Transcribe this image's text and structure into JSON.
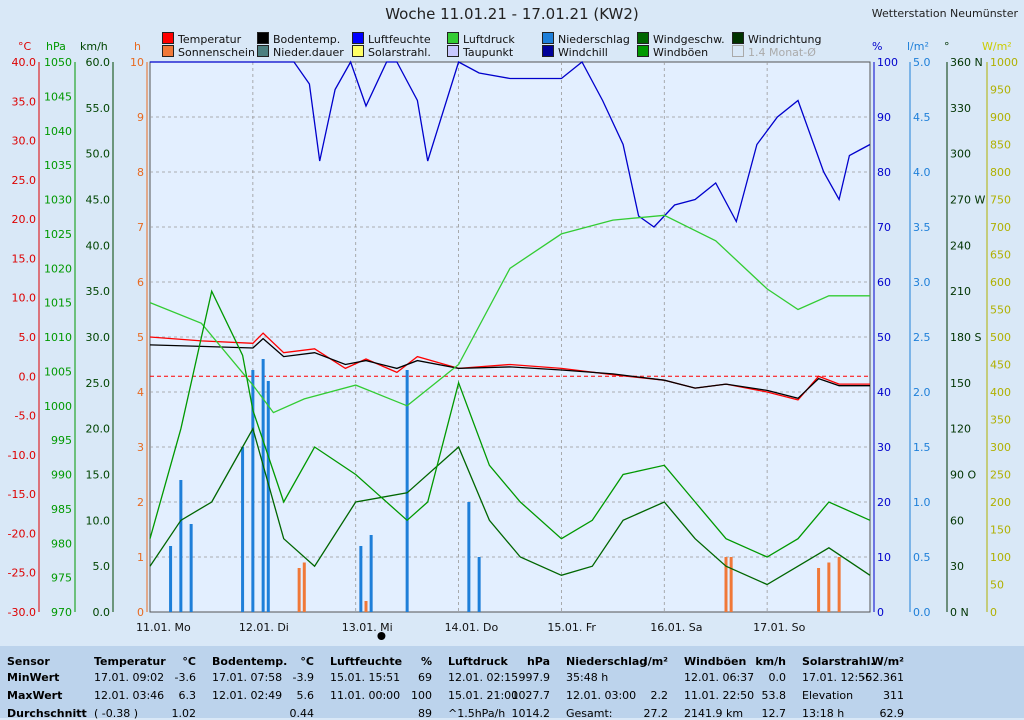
{
  "title": "Woche 11.01.21 - 17.01.21 (KW2)",
  "station": "Wetterstation Neumünster",
  "legend": [
    {
      "label": "Temperatur",
      "color": "#ff0000"
    },
    {
      "label": "Bodentemp.",
      "color": "#000000"
    },
    {
      "label": "Luftfeuchte",
      "color": "#0000ff"
    },
    {
      "label": "Luftdruck",
      "color": "#33cc33"
    },
    {
      "label": "Niederschlag",
      "color": "#1e7fd9"
    },
    {
      "label": "Windgeschw.",
      "color": "#006600"
    },
    {
      "label": "Windrichtung",
      "color": "#003300"
    },
    {
      "label": "Sonnenschein",
      "color": "#f07838"
    },
    {
      "label": "Nieder.dauer",
      "color": "#4d8080"
    },
    {
      "label": "Solarstrahl.",
      "color": "#ffff66"
    },
    {
      "label": "Taupunkt",
      "color": "#c8c8ff"
    },
    {
      "label": "Windchill",
      "color": "#000099"
    },
    {
      "label": "Windböen",
      "color": "#009900"
    },
    {
      "label": "1.4 Monat-Ø",
      "color": "#d9e8f7"
    }
  ],
  "axes": {
    "temp": {
      "unit": "°C",
      "ticks": [
        "40.0",
        "35.0",
        "30.0",
        "25.0",
        "20.0",
        "15.0",
        "10.0",
        "5.0",
        "0.0",
        "-5.0",
        "-10.0",
        "-15.0",
        "-20.0",
        "-25.0",
        "-30.0"
      ],
      "color": "#dd0000"
    },
    "press": {
      "unit": "hPa",
      "ticks": [
        "1050",
        "1045",
        "1040",
        "1035",
        "1030",
        "1025",
        "1020",
        "1015",
        "1010",
        "1005",
        "1000",
        "995",
        "990",
        "985",
        "980",
        "975",
        "970"
      ],
      "color": "#009900"
    },
    "wind": {
      "unit": "km/h",
      "ticks": [
        "60.0",
        "55.0",
        "50.0",
        "45.0",
        "40.0",
        "35.0",
        "30.0",
        "25.0",
        "20.0",
        "15.0",
        "10.0",
        "5.0",
        "0.0"
      ],
      "color": "#004400"
    },
    "sun": {
      "unit": "h",
      "ticks": [
        "10",
        "9",
        "8",
        "7",
        "6",
        "5",
        "4",
        "3",
        "2",
        "1",
        "0"
      ],
      "color": "#e86a20"
    },
    "hum": {
      "unit": "%",
      "ticks": [
        "100",
        "90",
        "80",
        "70",
        "60",
        "50",
        "40",
        "30",
        "20",
        "10",
        "0"
      ],
      "color": "#0000cc"
    },
    "rain": {
      "unit": "l/m²",
      "ticks": [
        "5.0",
        "4.5",
        "4.0",
        "3.5",
        "3.0",
        "2.5",
        "2.0",
        "1.5",
        "1.0",
        "0.5",
        "0.0"
      ],
      "color": "#1e7fd9"
    },
    "dir": {
      "unit": "°",
      "ticks": [
        "360 N",
        "330",
        "300",
        "270 W",
        "240",
        "210",
        "180 S",
        "150",
        "120",
        "90 O",
        "60",
        "30",
        "0 N"
      ],
      "color": "#003300"
    },
    "solar": {
      "unit": "W/m²",
      "ticks": [
        "1000",
        "950",
        "900",
        "850",
        "800",
        "750",
        "700",
        "650",
        "600",
        "550",
        "500",
        "450",
        "400",
        "350",
        "300",
        "250",
        "200",
        "150",
        "100",
        "50",
        "0"
      ],
      "color": "#cccc00"
    }
  },
  "days": [
    "11.01. Mo",
    "12.01. Di",
    "13.01. Mi",
    "14.01. Do",
    "15.01. Fr",
    "16.01. Sa",
    "17.01. So"
  ],
  "chart_data": {
    "type": "line",
    "x_days": [
      "11.01. Mo",
      "12.01. Di",
      "13.01. Mi",
      "14.01. Do",
      "15.01. Fr",
      "16.01. Sa",
      "17.01. So"
    ],
    "series": [
      {
        "name": "Temperatur",
        "unit": "°C",
        "color": "#ff0000",
        "x": [
          0,
          0.5,
          1,
          1.1,
          1.3,
          1.6,
          1.9,
          2.1,
          2.4,
          2.6,
          3,
          3.5,
          4,
          4.5,
          5,
          5.3,
          5.6,
          6,
          6.3,
          6.5,
          6.7,
          7
        ],
        "values": [
          5,
          4.5,
          4.2,
          5.5,
          3,
          3.5,
          1,
          2.2,
          0.5,
          2.5,
          1,
          1.5,
          1,
          0.2,
          -0.5,
          -1.5,
          -1,
          -2,
          -3,
          0,
          -1,
          -1
        ]
      },
      {
        "name": "Bodentemp.",
        "unit": "°C",
        "color": "#000000",
        "x": [
          0,
          0.5,
          1,
          1.1,
          1.3,
          1.6,
          1.9,
          2.1,
          2.4,
          2.6,
          3,
          3.5,
          4,
          4.5,
          5,
          5.3,
          5.6,
          6,
          6.3,
          6.5,
          6.7,
          7
        ],
        "values": [
          4,
          3.8,
          3.6,
          4.8,
          2.5,
          3,
          1.5,
          2,
          1,
          2,
          1,
          1.2,
          0.8,
          0.3,
          -0.5,
          -1.5,
          -1,
          -1.8,
          -2.8,
          -0.3,
          -1.2,
          -1.2
        ]
      },
      {
        "name": "Luftfeuchte",
        "unit": "%",
        "color": "#0000cc",
        "x": [
          0,
          1,
          1.4,
          1.55,
          1.65,
          1.8,
          1.95,
          2.1,
          2.3,
          2.4,
          2.6,
          2.7,
          3,
          3.2,
          3.5,
          4,
          4.2,
          4.4,
          4.6,
          4.75,
          4.9,
          5.1,
          5.3,
          5.5,
          5.7,
          5.9,
          6.1,
          6.3,
          6.55,
          6.7,
          6.8,
          6.9,
          7
        ],
        "values": [
          100,
          100,
          100,
          96,
          82,
          95,
          100,
          92,
          100,
          100,
          93,
          82,
          100,
          98,
          97,
          97,
          100,
          93,
          85,
          72,
          70,
          74,
          75,
          78,
          71,
          85,
          90,
          93,
          80,
          75,
          83,
          84,
          85
        ]
      },
      {
        "name": "Luftdruck",
        "unit": "hPa",
        "color": "#33cc33",
        "x": [
          0,
          0.5,
          1,
          1.2,
          1.5,
          2,
          2.5,
          3,
          3.5,
          4,
          4.5,
          5,
          5.5,
          6,
          6.3,
          6.6,
          7
        ],
        "values": [
          1015,
          1012,
          1003,
          999,
          1001,
          1003,
          1000,
          1006,
          1020,
          1025,
          1027,
          1027.7,
          1024,
          1017,
          1014,
          1016,
          1016
        ]
      },
      {
        "name": "Windgeschw.",
        "unit": "km/h",
        "color": "#006600",
        "x": [
          0,
          0.3,
          0.6,
          0.9,
          1,
          1.3,
          1.6,
          2,
          2.5,
          3,
          3.3,
          3.6,
          4,
          4.3,
          4.6,
          5,
          5.3,
          5.6,
          6,
          6.3,
          6.6,
          7
        ],
        "values": [
          5,
          10,
          12,
          18,
          20,
          8,
          5,
          12,
          13,
          18,
          10,
          6,
          4,
          5,
          10,
          12,
          8,
          5,
          3,
          5,
          7,
          4
        ]
      },
      {
        "name": "Windböen",
        "unit": "km/h",
        "color": "#009900",
        "x": [
          0,
          0.3,
          0.6,
          0.9,
          1,
          1.3,
          1.6,
          2,
          2.5,
          2.7,
          3,
          3.3,
          3.6,
          4,
          4.3,
          4.6,
          5,
          5.3,
          5.6,
          6,
          6.3,
          6.6,
          7
        ],
        "values": [
          8,
          20,
          35,
          28,
          22,
          12,
          18,
          15,
          10,
          12,
          25,
          16,
          12,
          8,
          10,
          15,
          16,
          12,
          8,
          6,
          8,
          12,
          10
        ]
      }
    ],
    "bars": [
      {
        "name": "Niederschlag",
        "unit": "l/m²",
        "color": "#1e7fd9",
        "x": [
          0.2,
          0.3,
          0.4,
          0.9,
          1,
          1.1,
          1.15,
          2.05,
          2.15,
          2.5,
          3.1,
          3.2
        ],
        "values": [
          0.6,
          1.2,
          0.8,
          1.5,
          2.2,
          2.3,
          2.1,
          0.6,
          0.7,
          2.2,
          1.0,
          0.5
        ]
      },
      {
        "name": "Sonnenschein",
        "unit": "h",
        "color": "#f07838",
        "x": [
          1.45,
          1.5,
          2.1,
          5.6,
          5.65,
          6.5,
          6.6,
          6.7
        ],
        "values": [
          0.8,
          0.9,
          0.2,
          1.0,
          1.0,
          0.8,
          0.9,
          1.0
        ]
      }
    ],
    "ylim_temp": [
      -30,
      40
    ],
    "ylim_hum": [
      0,
      100
    ],
    "ylim_press": [
      970,
      1050
    ],
    "ylim_wind": [
      0,
      60
    ]
  },
  "table": {
    "rows": [
      "Sensor",
      "MinWert",
      "MaxWert",
      "Durchschnitt"
    ],
    "cols": [
      {
        "head": "Temperatur",
        "unit": "°C",
        "lines": [
          [
            "17.01.  09:02",
            "-3.6"
          ],
          [
            "12.01.  03:46",
            "6.3"
          ],
          [
            "( -0.38 )",
            "1.02"
          ]
        ]
      },
      {
        "head": "Bodentemp.",
        "unit": "°C",
        "lines": [
          [
            "17.01.  07:58",
            "-3.9"
          ],
          [
            "12.01.  02:49",
            "5.6"
          ],
          [
            "",
            "0.44"
          ]
        ]
      },
      {
        "head": "Luftfeuchte",
        "unit": "%",
        "lines": [
          [
            "15.01.  15:51",
            "69"
          ],
          [
            "11.01.  00:00",
            "100"
          ],
          [
            "",
            "89"
          ]
        ]
      },
      {
        "head": "Luftdruck",
        "unit": "hPa",
        "lines": [
          [
            "12.01.  02:15",
            "997.9"
          ],
          [
            "15.01.  21:00",
            "1027.7"
          ],
          [
            "^1.5hPa/h",
            "1014.2"
          ]
        ]
      },
      {
        "head": "Niederschlag",
        "unit": "l/m²",
        "lines": [
          [
            "35:48 h",
            ""
          ],
          [
            "12.01.  03:00",
            "2.2"
          ],
          [
            "Gesamt:",
            "27.2"
          ]
        ]
      },
      {
        "head": "Windböen",
        "unit": "km/h",
        "lines": [
          [
            "12.01.  06:37",
            "0.0"
          ],
          [
            "11.01.  22:50",
            "53.8"
          ],
          [
            "2141.9 km",
            "12.7"
          ]
        ]
      },
      {
        "head": "Solarstrahl.",
        "unit": "W/m²",
        "lines": [
          [
            "17.01.  12:56",
            "-52.361"
          ],
          [
            "Elevation",
            "311"
          ],
          [
            "13:18 h",
            "62.9"
          ]
        ]
      }
    ]
  }
}
